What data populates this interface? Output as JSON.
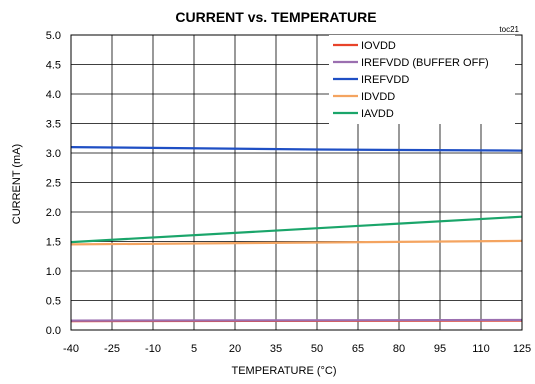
{
  "chart_data": {
    "type": "line",
    "title": "CURRENT vs. TEMPERATURE",
    "tag": "toc21",
    "xlabel": "TEMPERATURE (°C)",
    "ylabel": "CURRENT (mA)",
    "xlim": [
      -40,
      125
    ],
    "ylim": [
      0,
      5
    ],
    "xticks": [
      "-40",
      "-25",
      "-10",
      "5",
      "20",
      "35",
      "50",
      "65",
      "80",
      "95",
      "110",
      "125"
    ],
    "yticks": [
      "0.0",
      "0.5",
      "1.0",
      "1.5",
      "2.0",
      "2.5",
      "3.0",
      "3.5",
      "4.0",
      "4.5",
      "5.0"
    ],
    "grid": true,
    "legend_position": "top-right",
    "series": [
      {
        "name": "IOVDD",
        "color": "#e8432a",
        "x": [
          -40,
          125
        ],
        "y": [
          0.15,
          0.16
        ]
      },
      {
        "name": "IREFVDD (BUFFER OFF)",
        "color": "#9b6fb0",
        "x": [
          -40,
          125
        ],
        "y": [
          0.16,
          0.17
        ]
      },
      {
        "name": "IREFVDD",
        "color": "#1f4fc4",
        "x": [
          -40,
          50,
          125
        ],
        "y": [
          3.1,
          3.06,
          3.04
        ]
      },
      {
        "name": "IDVDD",
        "color": "#f4a460",
        "x": [
          -40,
          125
        ],
        "y": [
          1.45,
          1.51
        ]
      },
      {
        "name": "IAVDD",
        "color": "#1aa56a",
        "x": [
          -40,
          125
        ],
        "y": [
          1.49,
          1.92
        ]
      }
    ]
  }
}
